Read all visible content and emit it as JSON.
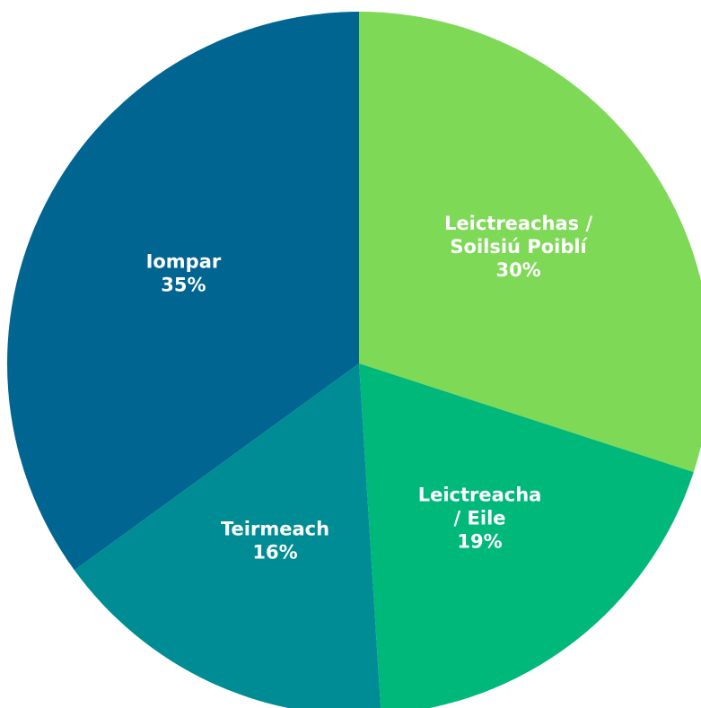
{
  "chart_data": {
    "type": "pie",
    "categories": [
      "Leictreachas /\nSoilsiú Poiblí",
      "Leictreacha\n/ Eile",
      "Teirmeach",
      "Iompar"
    ],
    "values": [
      30,
      19,
      16,
      35
    ],
    "value_labels": [
      "30%",
      "19%",
      "16%",
      "35%"
    ],
    "colors": [
      "#7ed957",
      "#00b87a",
      "#008c95",
      "#006591"
    ]
  }
}
